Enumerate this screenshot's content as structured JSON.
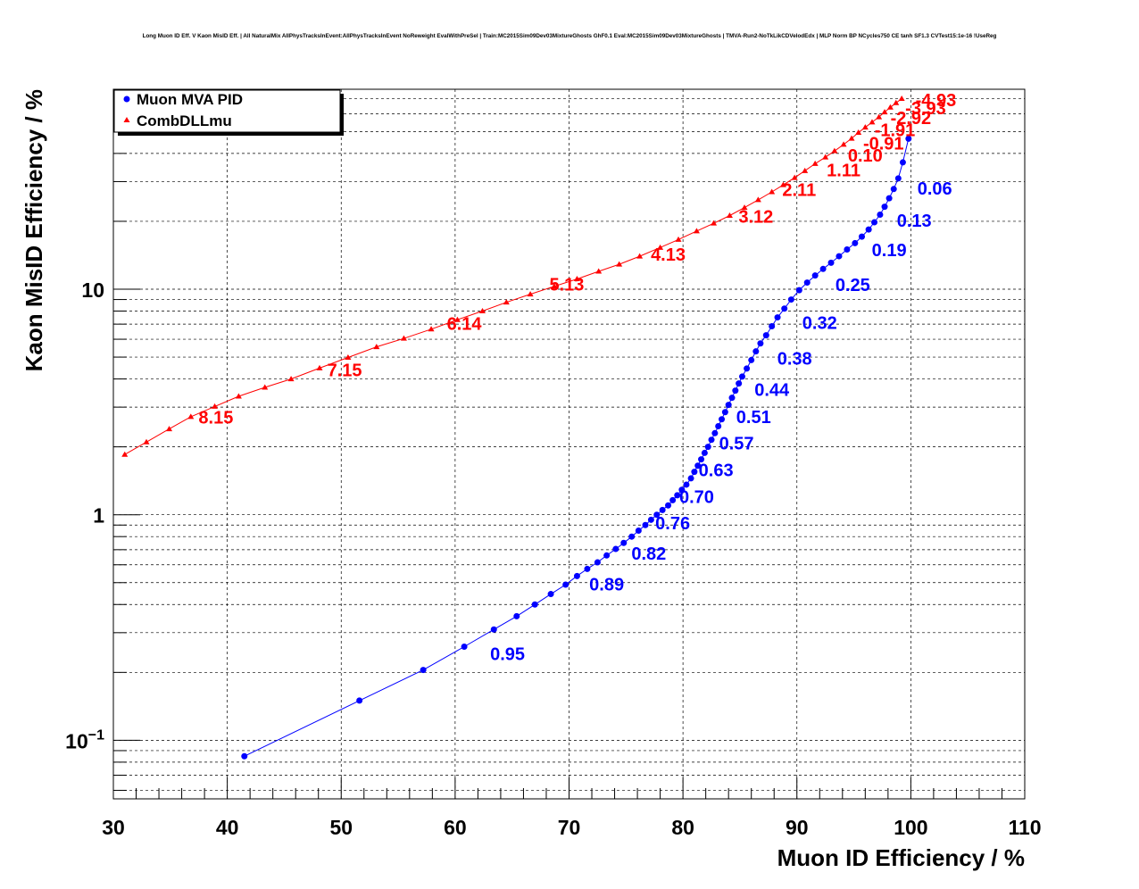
{
  "chart_data": {
    "type": "scatter",
    "title": "Long Muon ID Eff. V Kaon MisID Eff. | All NaturalMix AllPhysTracksInEvent:AllPhysTracksInEvent NoReweight EvalWithPreSel | Train:MC2015Sim09Dev03MixtureGhosts GhF0.1 Eval:MC2015Sim09Dev03MixtureGhosts | TMVA-Run2-NoTkLikCDVelodEdx | MLP Norm BP NCycles750 CE tanh SF1.3 CVTest15:1e-16 !UseReg",
    "xlabel": "Muon ID Efficiency / %",
    "ylabel": "Kaon MisID Efficiency / %",
    "xlim": [
      30,
      110
    ],
    "ylim": [
      0.055,
      77
    ],
    "ylog": true,
    "grid": true,
    "legend_position": "top-left",
    "x_ticks": [
      "30",
      "40",
      "50",
      "60",
      "70",
      "80",
      "90",
      "100",
      "110"
    ],
    "y_ticks": [
      {
        "value": 0.1,
        "base": "10",
        "exp": "−1"
      },
      {
        "value": 1,
        "base": "1",
        "exp": ""
      },
      {
        "value": 10,
        "base": "10",
        "exp": ""
      }
    ],
    "series": [
      {
        "name": "Muon MVA PID",
        "color": "#0000ff",
        "marker": "circle",
        "points": [
          [
            41.5,
            0.085
          ],
          [
            51.6,
            0.15
          ],
          [
            57.2,
            0.205
          ],
          [
            60.8,
            0.26
          ],
          [
            63.4,
            0.31
          ],
          [
            65.4,
            0.355
          ],
          [
            67.0,
            0.4
          ],
          [
            68.4,
            0.445
          ],
          [
            69.7,
            0.49
          ],
          [
            70.7,
            0.535
          ],
          [
            71.6,
            0.575
          ],
          [
            72.5,
            0.615
          ],
          [
            73.3,
            0.66
          ],
          [
            74.1,
            0.705
          ],
          [
            74.8,
            0.75
          ],
          [
            75.5,
            0.8
          ],
          [
            76.1,
            0.85
          ],
          [
            76.7,
            0.9
          ],
          [
            77.2,
            0.95
          ],
          [
            77.7,
            1.0
          ],
          [
            78.2,
            1.05
          ],
          [
            78.7,
            1.1
          ],
          [
            79.1,
            1.16
          ],
          [
            79.5,
            1.22
          ],
          [
            79.9,
            1.29
          ],
          [
            80.3,
            1.36
          ],
          [
            80.7,
            1.45
          ],
          [
            81.0,
            1.55
          ],
          [
            81.3,
            1.65
          ],
          [
            81.6,
            1.76
          ],
          [
            81.9,
            1.88
          ],
          [
            82.2,
            2.0
          ],
          [
            82.5,
            2.15
          ],
          [
            82.8,
            2.3
          ],
          [
            83.1,
            2.47
          ],
          [
            83.4,
            2.65
          ],
          [
            83.7,
            2.85
          ],
          [
            84.0,
            3.07
          ],
          [
            84.3,
            3.3
          ],
          [
            84.6,
            3.55
          ],
          [
            84.9,
            3.82
          ],
          [
            85.2,
            4.1
          ],
          [
            85.6,
            4.45
          ],
          [
            86.0,
            4.85
          ],
          [
            86.4,
            5.3
          ],
          [
            86.8,
            5.75
          ],
          [
            87.3,
            6.25
          ],
          [
            87.8,
            6.85
          ],
          [
            88.3,
            7.5
          ],
          [
            88.9,
            8.2
          ],
          [
            89.5,
            9.0
          ],
          [
            90.2,
            9.9
          ],
          [
            90.9,
            10.7
          ],
          [
            91.6,
            11.5
          ],
          [
            92.3,
            12.3
          ],
          [
            93.0,
            13.1
          ],
          [
            93.7,
            14.0
          ],
          [
            94.4,
            15.0
          ],
          [
            95.1,
            16.0
          ],
          [
            95.7,
            17.1
          ],
          [
            96.3,
            18.4
          ],
          [
            96.8,
            19.8
          ],
          [
            97.3,
            21.4
          ],
          [
            97.7,
            23.2
          ],
          [
            98.1,
            25.3
          ],
          [
            98.5,
            27.8
          ],
          [
            98.9,
            31.0
          ],
          [
            99.3,
            36.5
          ],
          [
            99.8,
            46.5
          ]
        ]
      },
      {
        "name": "CombDLLmu",
        "color": "#ff0000",
        "marker": "triangle",
        "points": [
          [
            31.0,
            1.85
          ],
          [
            32.9,
            2.1
          ],
          [
            34.9,
            2.4
          ],
          [
            36.8,
            2.72
          ],
          [
            38.9,
            3.02
          ],
          [
            41.0,
            3.35
          ],
          [
            43.3,
            3.67
          ],
          [
            45.6,
            4.0
          ],
          [
            48.1,
            4.47
          ],
          [
            50.6,
            4.98
          ],
          [
            53.1,
            5.55
          ],
          [
            55.5,
            6.05
          ],
          [
            57.9,
            6.65
          ],
          [
            60.2,
            7.32
          ],
          [
            62.4,
            8.0
          ],
          [
            64.5,
            8.75
          ],
          [
            66.6,
            9.5
          ],
          [
            68.7,
            10.3
          ],
          [
            70.7,
            11.1
          ],
          [
            72.6,
            12.0
          ],
          [
            74.4,
            12.9
          ],
          [
            76.2,
            14.0
          ],
          [
            78.0,
            15.3
          ],
          [
            79.6,
            16.6
          ],
          [
            81.2,
            18.1
          ],
          [
            82.7,
            19.6
          ],
          [
            84.1,
            21.2
          ],
          [
            85.4,
            23.0
          ],
          [
            86.6,
            24.9
          ],
          [
            87.8,
            27.0
          ],
          [
            88.8,
            29.0
          ],
          [
            89.8,
            31.2
          ],
          [
            90.7,
            33.5
          ],
          [
            91.6,
            36.0
          ],
          [
            92.5,
            38.5
          ],
          [
            93.3,
            41.0
          ],
          [
            94.1,
            43.8
          ],
          [
            94.8,
            46.6
          ],
          [
            95.4,
            49.5
          ],
          [
            96.0,
            52.2
          ],
          [
            96.6,
            55.0
          ],
          [
            97.2,
            58.0
          ],
          [
            97.7,
            61.0
          ],
          [
            98.2,
            64.0
          ],
          [
            98.7,
            67.0
          ],
          [
            99.2,
            70.0
          ]
        ]
      }
    ],
    "annotations": [
      {
        "series": "CombDLLmu",
        "text": "8.15",
        "x": 39.0,
        "y": 2.71
      },
      {
        "series": "CombDLLmu",
        "text": "7.15",
        "x": 50.3,
        "y": 4.38
      },
      {
        "series": "CombDLLmu",
        "text": "6.14",
        "x": 60.8,
        "y": 7.05
      },
      {
        "series": "CombDLLmu",
        "text": "5.13",
        "x": 69.8,
        "y": 10.5
      },
      {
        "series": "CombDLLmu",
        "text": "4.13",
        "x": 78.7,
        "y": 14.25
      },
      {
        "series": "CombDLLmu",
        "text": "3.12",
        "x": 86.4,
        "y": 21.0
      },
      {
        "series": "CombDLLmu",
        "text": "2.11",
        "x": 90.2,
        "y": 27.6
      },
      {
        "series": "CombDLLmu",
        "text": "1.11",
        "x": 94.1,
        "y": 33.7
      },
      {
        "series": "CombDLLmu",
        "text": "0.10",
        "x": 96.0,
        "y": 39.2
      },
      {
        "series": "CombDLLmu",
        "text": "-0.91",
        "x": 97.6,
        "y": 44.3
      },
      {
        "series": "CombDLLmu",
        "text": "-1.91",
        "x": 98.6,
        "y": 50.9
      },
      {
        "series": "CombDLLmu",
        "text": "-2.92",
        "x": 100.0,
        "y": 57.4
      },
      {
        "series": "CombDLLmu",
        "text": "-3.93",
        "x": 101.3,
        "y": 63.7
      },
      {
        "series": "CombDLLmu",
        "text": "-4.93",
        "x": 102.2,
        "y": 69.0
      },
      {
        "series": "Muon MVA PID",
        "text": "0.06",
        "x": 102.1,
        "y": 28.0
      },
      {
        "series": "Muon MVA PID",
        "text": "0.13",
        "x": 100.3,
        "y": 20.2
      },
      {
        "series": "Muon MVA PID",
        "text": "0.19",
        "x": 98.1,
        "y": 14.9
      },
      {
        "series": "Muon MVA PID",
        "text": "0.25",
        "x": 94.9,
        "y": 10.45
      },
      {
        "series": "Muon MVA PID",
        "text": "0.32",
        "x": 92.0,
        "y": 7.09
      },
      {
        "series": "Muon MVA PID",
        "text": "0.38",
        "x": 89.8,
        "y": 4.93
      },
      {
        "series": "Muon MVA PID",
        "text": "0.44",
        "x": 87.8,
        "y": 3.59
      },
      {
        "series": "Muon MVA PID",
        "text": "0.51",
        "x": 86.2,
        "y": 2.72
      },
      {
        "series": "Muon MVA PID",
        "text": "0.57",
        "x": 84.7,
        "y": 2.08
      },
      {
        "series": "Muon MVA PID",
        "text": "0.63",
        "x": 82.9,
        "y": 1.58
      },
      {
        "series": "Muon MVA PID",
        "text": "0.70",
        "x": 81.2,
        "y": 1.2
      },
      {
        "series": "Muon MVA PID",
        "text": "0.76",
        "x": 79.1,
        "y": 0.918
      },
      {
        "series": "Muon MVA PID",
        "text": "0.82",
        "x": 77.0,
        "y": 0.675
      },
      {
        "series": "Muon MVA PID",
        "text": "0.89",
        "x": 73.3,
        "y": 0.493
      },
      {
        "series": "Muon MVA PID",
        "text": "0.95",
        "x": 64.6,
        "y": 0.242
      }
    ]
  }
}
